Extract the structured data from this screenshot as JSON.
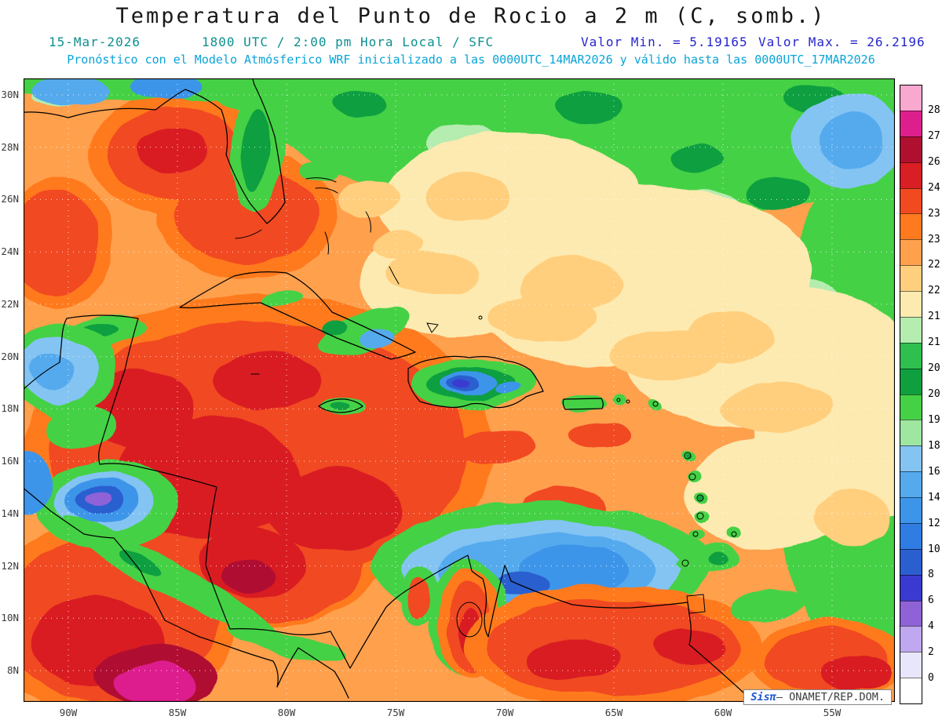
{
  "header": {
    "title": "Temperatura del Punto de Rocio a 2 m (C, somb.)",
    "date": "15-Mar-2026",
    "valid_time": "1800 UTC / 2:00 pm Hora Local / SFC",
    "min_label": "Valor Min. = 5.19165",
    "max_label": "Valor Max. = 26.2196",
    "model_line": "Pronóstico con el Modelo Atmósferico WRF inicializado a las 0000UTC_14MAR2026 y válido hasta las 0000UTC_17MAR2026"
  },
  "watermark": {
    "brand": "Sisπ",
    "suffix": "– ONAMET/REP.DOM."
  },
  "chart_data": {
    "type": "heatmap",
    "title": "Temperatura del Punto de Rocio a 2 m (C, somb.)",
    "value_min": 5.19165,
    "value_max": 26.2196,
    "x_axis": {
      "ticks": [
        "90W",
        "85W",
        "80W",
        "75W",
        "70W",
        "65W",
        "60W",
        "55W"
      ]
    },
    "y_axis": {
      "ticks": [
        "30N",
        "28N",
        "26N",
        "24N",
        "22N",
        "20N",
        "18N",
        "16N",
        "14N",
        "12N",
        "10N",
        "8N"
      ]
    },
    "colorbar_levels": [
      0,
      2,
      4,
      6,
      8,
      10,
      12,
      14,
      16,
      18,
      19,
      20,
      20.5,
      21,
      21.5,
      22,
      22.5,
      23,
      23.5,
      24.5,
      26,
      27,
      28
    ],
    "colorbar_colors": [
      "#ffffff",
      "#e8e6fa",
      "#bfa8ef",
      "#8f62d8",
      "#3a3ad0",
      "#2b5fd0",
      "#2f7de2",
      "#3d95ea",
      "#55aaee",
      "#84c4f2",
      "#9fe6a0",
      "#45d145",
      "#0f9f3f",
      "#2fbf4f",
      "#b5ecb0",
      "#fdeab0",
      "#ffcf7e",
      "#ffa04d",
      "#ff7a1e",
      "#f14a21",
      "#d91e24",
      "#b01030",
      "#dd1f8e",
      "#f9a8cf"
    ],
    "legend_position": "right",
    "grid": true
  }
}
